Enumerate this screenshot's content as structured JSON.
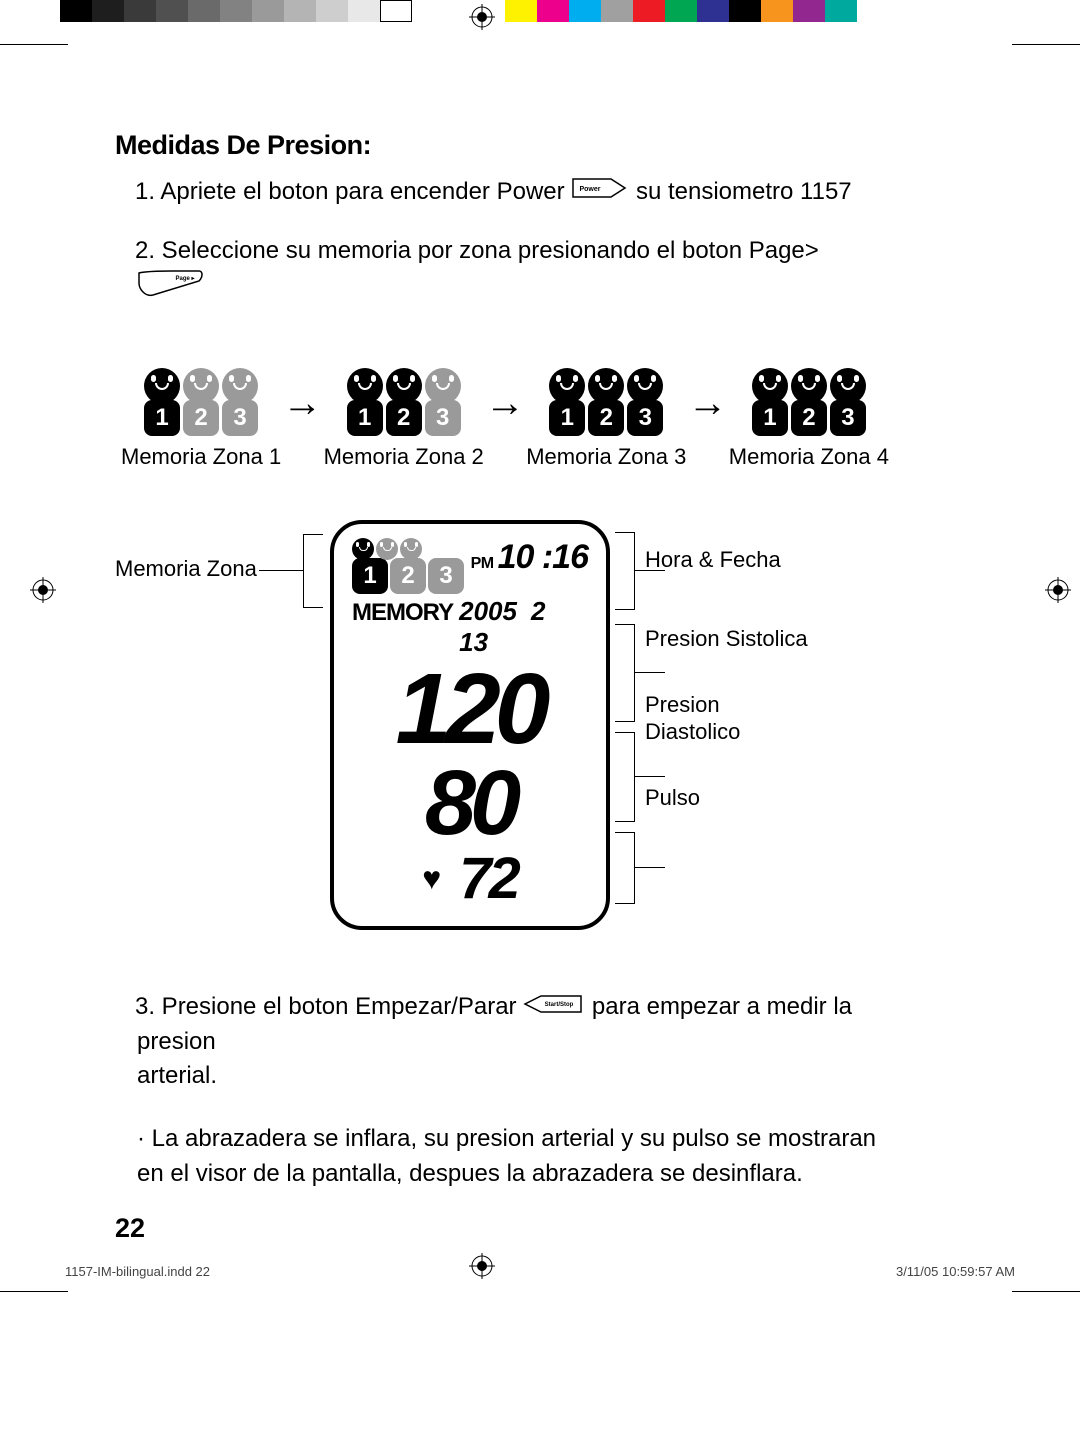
{
  "colorbar_gray": [
    "#000000",
    "#1e1e1e",
    "#3a3a3a",
    "#505050",
    "#6a6a6a",
    "#828282",
    "#9a9a9a",
    "#b4b4b4",
    "#cecece",
    "#e8e8e8",
    "#ffffff"
  ],
  "colorbar_color": [
    "#fff200",
    "#ec008c",
    "#00aeef",
    "#a0a0a0",
    "#ed1c24",
    "#00a651",
    "#2e3192",
    "#000000",
    "#f7941d",
    "#92278f",
    "#00a99d",
    "#ffffff"
  ],
  "heading": "Medidas De Presion:",
  "step1a": "1. Apriete el boton para encender Power",
  "step1b": "su tensiometro 1157",
  "step2": "2. Seleccione su memoria por zona presionando el boton Page>",
  "zones": [
    {
      "label": "Memoria Zona 1",
      "active": [
        true,
        false,
        false
      ]
    },
    {
      "label": "Memoria Zona 2",
      "active": [
        true,
        true,
        false
      ]
    },
    {
      "label": "Memoria Zona 3",
      "active": [
        true,
        true,
        true
      ]
    },
    {
      "label": "Memoria Zona 4",
      "active": [
        true,
        true,
        true
      ]
    }
  ],
  "lcd": {
    "zone_active": [
      true,
      false,
      false
    ],
    "pm": "PM",
    "time": "10 :16",
    "memory": "MEMORY",
    "year": "2005",
    "month": "2",
    "day": "13",
    "systolic": "120",
    "diastolic": "80",
    "pulse": "72"
  },
  "label_memory_zone": "Memoria Zona",
  "label_time_date": "Hora & Fecha",
  "label_systolic": "Presion Sistolica",
  "label_diastolic": "Presion Diastolico",
  "label_pulse": "Pulso",
  "step3a": "3. Presione el boton Empezar/Parar",
  "step3b": "para empezar a medir la presion",
  "step3c": "arterial.",
  "bullet": "· La abrazadera se inflara, su presion arterial y su pulso se mostraran en el visor de la pantalla, despues la abrazadera se desinflara.",
  "page_num": "22",
  "footer_file": "1157-IM-bilingual.indd   22",
  "footer_time": "3/11/05   10:59:57 AM",
  "btn_power": "Power",
  "btn_page": "Page ▸",
  "btn_start": "Start/Stop"
}
